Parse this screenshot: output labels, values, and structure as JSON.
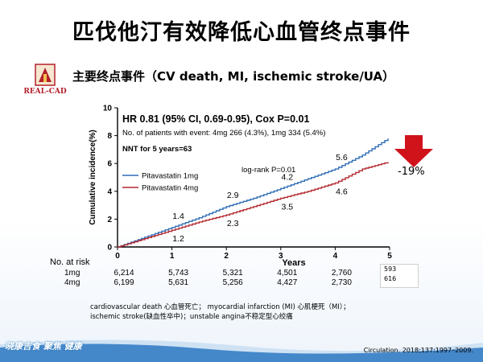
{
  "slide": {
    "title": "匹伐他汀有效降低心血管终点事件",
    "subtitle": "主要终点事件（CV death, MI, ischemic stroke/UA）",
    "logo_text": "REAL-CAD",
    "footnote_line1": "cardiovascular death 心血管死亡； myocardial infarction (MI) 心肌梗死（MI）；",
    "footnote_line2": "ischemic stroke(缺血性卒中)；unstable angina不稳定型心绞痛",
    "citation": "Circulation. 2018;137:1997–2009.",
    "brand": "晓康吉食 聚焦 健康",
    "reduction_label": "-19%",
    "inset_values": [
      "593",
      "616"
    ]
  },
  "chart_data": {
    "type": "line",
    "xlabel": "Years",
    "ylabel": "Cumulative incidence(%)",
    "xlim": [
      0,
      5
    ],
    "ylim": [
      0,
      10
    ],
    "xticks": [
      "0",
      "1",
      "2",
      "3",
      "4",
      "5"
    ],
    "yticks": [
      "0",
      "2",
      "4",
      "6",
      "8",
      "10"
    ],
    "annotations": {
      "hr": "HR 0.81 (95% CI, 0.69-0.95), Cox P=0.01",
      "events": "No. of patients with event: 4mg 266 (4.3%), 1mg 334 (5.4%)",
      "nnt": "NNT for 5 years=63",
      "logrank": "log-rank P=0.01"
    },
    "series": [
      {
        "name": "Pitavastatin 1mg",
        "color": "#2f6db5",
        "x": [
          0,
          0.5,
          1,
          1.5,
          2,
          2.5,
          3,
          3.5,
          4,
          4.5,
          4.97
        ],
        "y": [
          0,
          0.7,
          1.4,
          2.1,
          2.9,
          3.5,
          4.2,
          4.9,
          5.6,
          6.6,
          7.8
        ],
        "point_labels": [
          {
            "x": 1,
            "y": 1.4,
            "label": "1.4"
          },
          {
            "x": 2,
            "y": 2.9,
            "label": "2.9"
          },
          {
            "x": 3,
            "y": 4.2,
            "label": "4.2"
          },
          {
            "x": 4,
            "y": 5.6,
            "label": "5.6"
          }
        ]
      },
      {
        "name": "Pitavastatin 4mg",
        "color": "#b3282f",
        "x": [
          0,
          0.5,
          1,
          1.5,
          2,
          2.5,
          3,
          3.5,
          4,
          4.5,
          4.97
        ],
        "y": [
          0,
          0.6,
          1.2,
          1.8,
          2.3,
          2.9,
          3.5,
          4.0,
          4.6,
          5.6,
          6.1
        ],
        "point_labels": [
          {
            "x": 1,
            "y": 1.2,
            "label": "1.2"
          },
          {
            "x": 2,
            "y": 2.3,
            "label": "2.3"
          },
          {
            "x": 3,
            "y": 3.5,
            "label": "3.5"
          },
          {
            "x": 4,
            "y": 4.6,
            "label": "4.6"
          }
        ]
      }
    ],
    "risk_table": {
      "header": "No. at risk",
      "rows": [
        {
          "label": "1mg",
          "values": [
            "6,214",
            "5,743",
            "5,321",
            "4,501",
            "2,760"
          ]
        },
        {
          "label": "4mg",
          "values": [
            "6,199",
            "5,631",
            "5,256",
            "4,427",
            "2,730"
          ]
        }
      ]
    }
  }
}
